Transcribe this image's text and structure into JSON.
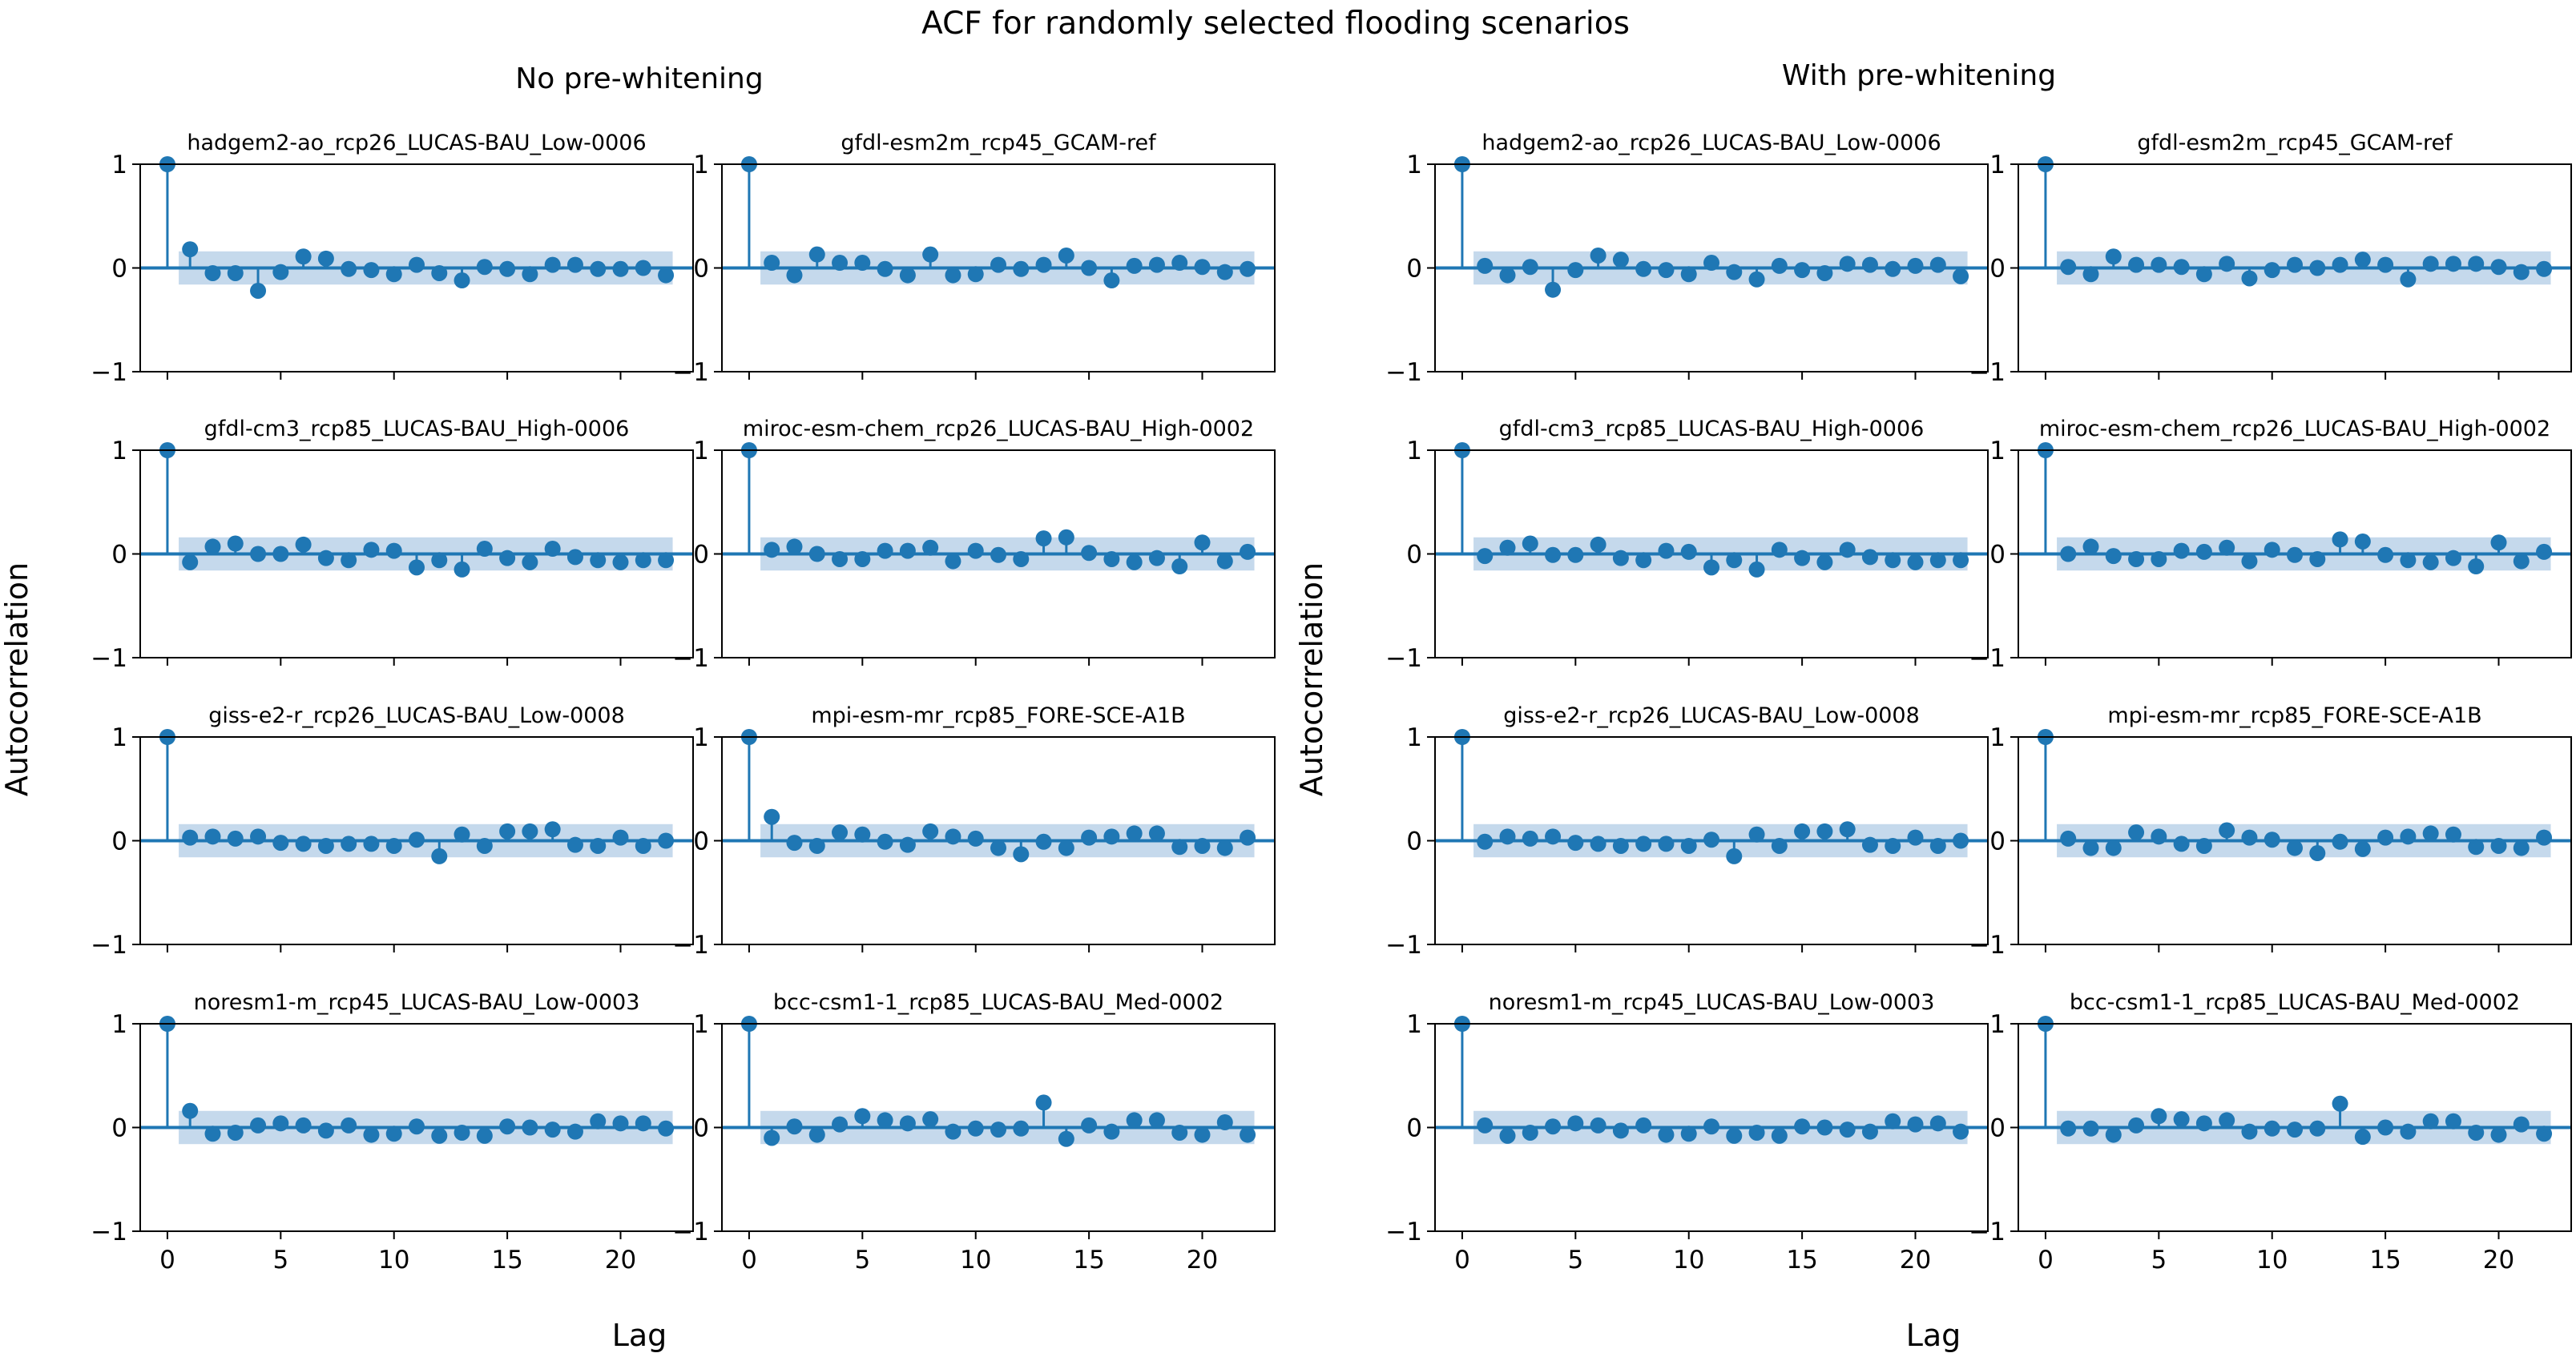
{
  "figure": {
    "title": "ACF for randomly selected flooding scenarios",
    "xlabel": "Lag",
    "ylabel": "Autocorrelation"
  },
  "groups": [
    {
      "title": "No pre-whitening"
    },
    {
      "title": "With pre-whitening"
    }
  ],
  "colors": {
    "stem": "#1f77b4",
    "confidence_band": "#c5d9ec",
    "axes": "#000000"
  },
  "chart_data": [
    {
      "type": "stem",
      "group": "No pre-whitening",
      "title": "hadgem2-ao_rcp26_LUCAS-BAU_Low-0006",
      "x": [
        0,
        1,
        2,
        3,
        4,
        5,
        6,
        7,
        8,
        9,
        10,
        11,
        12,
        13,
        14,
        15,
        16,
        17,
        18,
        19,
        20,
        21,
        22
      ],
      "values": [
        1.0,
        0.18,
        -0.05,
        -0.05,
        -0.22,
        -0.04,
        0.11,
        0.09,
        -0.01,
        -0.02,
        -0.06,
        0.03,
        -0.05,
        -0.12,
        0.01,
        -0.01,
        -0.06,
        0.03,
        0.03,
        -0.01,
        -0.01,
        0.0,
        -0.07
      ],
      "confidence": 0.16,
      "xticks": [
        0,
        5,
        10,
        15,
        20
      ],
      "yticks": [
        -1,
        0,
        1
      ],
      "xlim": [
        -1.2,
        23.2
      ],
      "ylim": [
        -1,
        1
      ]
    },
    {
      "type": "stem",
      "group": "No pre-whitening",
      "title": "gfdl-esm2m_rcp45_GCAM-ref",
      "x": [
        0,
        1,
        2,
        3,
        4,
        5,
        6,
        7,
        8,
        9,
        10,
        11,
        12,
        13,
        14,
        15,
        16,
        17,
        18,
        19,
        20,
        21,
        22
      ],
      "values": [
        1.0,
        0.05,
        -0.07,
        0.13,
        0.05,
        0.05,
        -0.01,
        -0.07,
        0.13,
        -0.07,
        -0.06,
        0.03,
        -0.01,
        0.03,
        0.12,
        0.0,
        -0.12,
        0.02,
        0.03,
        0.05,
        0.01,
        -0.04,
        -0.01
      ],
      "confidence": 0.16,
      "xticks": [
        0,
        5,
        10,
        15,
        20
      ],
      "yticks": [
        -1,
        0,
        1
      ],
      "xlim": [
        -1.2,
        23.2
      ],
      "ylim": [
        -1,
        1
      ]
    },
    {
      "type": "stem",
      "group": "No pre-whitening",
      "title": "gfdl-cm3_rcp85_LUCAS-BAU_High-0006",
      "x": [
        0,
        1,
        2,
        3,
        4,
        5,
        6,
        7,
        8,
        9,
        10,
        11,
        12,
        13,
        14,
        15,
        16,
        17,
        18,
        19,
        20,
        21,
        22
      ],
      "values": [
        1.0,
        -0.08,
        0.07,
        0.1,
        0.0,
        0.0,
        0.09,
        -0.04,
        -0.06,
        0.04,
        0.03,
        -0.13,
        -0.06,
        -0.15,
        0.05,
        -0.04,
        -0.08,
        0.05,
        -0.03,
        -0.06,
        -0.08,
        -0.06,
        -0.06
      ],
      "confidence": 0.16,
      "xticks": [
        0,
        5,
        10,
        15,
        20
      ],
      "yticks": [
        -1,
        0,
        1
      ],
      "xlim": [
        -1.2,
        23.2
      ],
      "ylim": [
        -1,
        1
      ]
    },
    {
      "type": "stem",
      "group": "No pre-whitening",
      "title": "miroc-esm-chem_rcp26_LUCAS-BAU_High-0002",
      "x": [
        0,
        1,
        2,
        3,
        4,
        5,
        6,
        7,
        8,
        9,
        10,
        11,
        12,
        13,
        14,
        15,
        16,
        17,
        18,
        19,
        20,
        21,
        22
      ],
      "values": [
        1.0,
        0.04,
        0.07,
        0.0,
        -0.05,
        -0.05,
        0.03,
        0.03,
        0.06,
        -0.07,
        0.03,
        -0.01,
        -0.05,
        0.15,
        0.16,
        0.01,
        -0.05,
        -0.08,
        -0.04,
        -0.12,
        0.11,
        -0.07,
        0.02
      ],
      "confidence": 0.16,
      "xticks": [
        0,
        5,
        10,
        15,
        20
      ],
      "yticks": [
        -1,
        0,
        1
      ],
      "xlim": [
        -1.2,
        23.2
      ],
      "ylim": [
        -1,
        1
      ]
    },
    {
      "type": "stem",
      "group": "No pre-whitening",
      "title": "giss-e2-r_rcp26_LUCAS-BAU_Low-0008",
      "x": [
        0,
        1,
        2,
        3,
        4,
        5,
        6,
        7,
        8,
        9,
        10,
        11,
        12,
        13,
        14,
        15,
        16,
        17,
        18,
        19,
        20,
        21,
        22
      ],
      "values": [
        1.0,
        0.03,
        0.04,
        0.02,
        0.04,
        -0.02,
        -0.03,
        -0.05,
        -0.03,
        -0.03,
        -0.05,
        0.01,
        -0.15,
        0.06,
        -0.05,
        0.09,
        0.09,
        0.11,
        -0.04,
        -0.05,
        0.03,
        -0.05,
        0.0
      ],
      "confidence": 0.16,
      "xticks": [
        0,
        5,
        10,
        15,
        20
      ],
      "yticks": [
        -1,
        0,
        1
      ],
      "xlim": [
        -1.2,
        23.2
      ],
      "ylim": [
        -1,
        1
      ]
    },
    {
      "type": "stem",
      "group": "No pre-whitening",
      "title": "mpi-esm-mr_rcp85_FORE-SCE-A1B",
      "x": [
        0,
        1,
        2,
        3,
        4,
        5,
        6,
        7,
        8,
        9,
        10,
        11,
        12,
        13,
        14,
        15,
        16,
        17,
        18,
        19,
        20,
        21,
        22
      ],
      "values": [
        1.0,
        0.23,
        -0.02,
        -0.05,
        0.08,
        0.06,
        -0.01,
        -0.04,
        0.09,
        0.04,
        0.02,
        -0.07,
        -0.13,
        -0.01,
        -0.07,
        0.03,
        0.04,
        0.07,
        0.07,
        -0.06,
        -0.05,
        -0.07,
        0.03
      ],
      "confidence": 0.16,
      "xticks": [
        0,
        5,
        10,
        15,
        20
      ],
      "yticks": [
        -1,
        0,
        1
      ],
      "xlim": [
        -1.2,
        23.2
      ],
      "ylim": [
        -1,
        1
      ]
    },
    {
      "type": "stem",
      "group": "No pre-whitening",
      "title": "noresm1-m_rcp45_LUCAS-BAU_Low-0003",
      "x": [
        0,
        1,
        2,
        3,
        4,
        5,
        6,
        7,
        8,
        9,
        10,
        11,
        12,
        13,
        14,
        15,
        16,
        17,
        18,
        19,
        20,
        21,
        22
      ],
      "values": [
        1.0,
        0.16,
        -0.06,
        -0.05,
        0.02,
        0.04,
        0.02,
        -0.03,
        0.02,
        -0.07,
        -0.06,
        0.01,
        -0.08,
        -0.05,
        -0.08,
        0.01,
        0.0,
        -0.02,
        -0.04,
        0.06,
        0.04,
        0.04,
        -0.01
      ],
      "confidence": 0.16,
      "xticks": [
        0,
        5,
        10,
        15,
        20
      ],
      "yticks": [
        -1,
        0,
        1
      ],
      "xlim": [
        -1.2,
        23.2
      ],
      "ylim": [
        -1,
        1
      ]
    },
    {
      "type": "stem",
      "group": "No pre-whitening",
      "title": "bcc-csm1-1_rcp85_LUCAS-BAU_Med-0002",
      "x": [
        0,
        1,
        2,
        3,
        4,
        5,
        6,
        7,
        8,
        9,
        10,
        11,
        12,
        13,
        14,
        15,
        16,
        17,
        18,
        19,
        20,
        21,
        22
      ],
      "values": [
        1.0,
        -0.1,
        0.01,
        -0.07,
        0.03,
        0.11,
        0.07,
        0.04,
        0.08,
        -0.04,
        -0.01,
        -0.02,
        -0.01,
        0.24,
        -0.11,
        0.02,
        -0.04,
        0.07,
        0.07,
        -0.05,
        -0.07,
        0.05,
        -0.07
      ],
      "confidence": 0.16,
      "xticks": [
        0,
        5,
        10,
        15,
        20
      ],
      "yticks": [
        -1,
        0,
        1
      ],
      "xlim": [
        -1.2,
        23.2
      ],
      "ylim": [
        -1,
        1
      ]
    },
    {
      "type": "stem",
      "group": "With pre-whitening",
      "title": "hadgem2-ao_rcp26_LUCAS-BAU_Low-0006",
      "x": [
        0,
        1,
        2,
        3,
        4,
        5,
        6,
        7,
        8,
        9,
        10,
        11,
        12,
        13,
        14,
        15,
        16,
        17,
        18,
        19,
        20,
        21,
        22
      ],
      "values": [
        1.0,
        0.02,
        -0.07,
        0.01,
        -0.21,
        -0.02,
        0.12,
        0.08,
        -0.01,
        -0.02,
        -0.06,
        0.05,
        -0.04,
        -0.11,
        0.02,
        -0.02,
        -0.05,
        0.04,
        0.03,
        -0.01,
        0.02,
        0.03,
        -0.08
      ],
      "confidence": 0.16,
      "xticks": [
        0,
        5,
        10,
        15,
        20
      ],
      "yticks": [
        -1,
        0,
        1
      ],
      "xlim": [
        -1.2,
        23.2
      ],
      "ylim": [
        -1,
        1
      ]
    },
    {
      "type": "stem",
      "group": "With pre-whitening",
      "title": "gfdl-esm2m_rcp45_GCAM-ref",
      "x": [
        0,
        1,
        2,
        3,
        4,
        5,
        6,
        7,
        8,
        9,
        10,
        11,
        12,
        13,
        14,
        15,
        16,
        17,
        18,
        19,
        20,
        21,
        22
      ],
      "values": [
        1.0,
        0.01,
        -0.06,
        0.11,
        0.03,
        0.03,
        0.01,
        -0.06,
        0.04,
        -0.1,
        -0.02,
        0.03,
        0.0,
        0.03,
        0.08,
        0.03,
        -0.11,
        0.04,
        0.04,
        0.04,
        0.01,
        -0.04,
        -0.01
      ],
      "confidence": 0.16,
      "xticks": [
        0,
        5,
        10,
        15,
        20
      ],
      "yticks": [
        -1,
        0,
        1
      ],
      "xlim": [
        -1.2,
        23.2
      ],
      "ylim": [
        -1,
        1
      ]
    },
    {
      "type": "stem",
      "group": "With pre-whitening",
      "title": "gfdl-cm3_rcp85_LUCAS-BAU_High-0006",
      "x": [
        0,
        1,
        2,
        3,
        4,
        5,
        6,
        7,
        8,
        9,
        10,
        11,
        12,
        13,
        14,
        15,
        16,
        17,
        18,
        19,
        20,
        21,
        22
      ],
      "values": [
        1.0,
        -0.02,
        0.06,
        0.1,
        -0.01,
        -0.01,
        0.09,
        -0.04,
        -0.06,
        0.03,
        0.02,
        -0.13,
        -0.06,
        -0.15,
        0.04,
        -0.04,
        -0.08,
        0.04,
        -0.03,
        -0.06,
        -0.08,
        -0.06,
        -0.06
      ],
      "confidence": 0.16,
      "xticks": [
        0,
        5,
        10,
        15,
        20
      ],
      "yticks": [
        -1,
        0,
        1
      ],
      "xlim": [
        -1.2,
        23.2
      ],
      "ylim": [
        -1,
        1
      ]
    },
    {
      "type": "stem",
      "group": "With pre-whitening",
      "title": "miroc-esm-chem_rcp26_LUCAS-BAU_High-0002",
      "x": [
        0,
        1,
        2,
        3,
        4,
        5,
        6,
        7,
        8,
        9,
        10,
        11,
        12,
        13,
        14,
        15,
        16,
        17,
        18,
        19,
        20,
        21,
        22
      ],
      "values": [
        1.0,
        0.0,
        0.07,
        -0.02,
        -0.05,
        -0.05,
        0.03,
        0.02,
        0.06,
        -0.07,
        0.04,
        -0.01,
        -0.05,
        0.14,
        0.12,
        -0.01,
        -0.06,
        -0.08,
        -0.04,
        -0.12,
        0.11,
        -0.07,
        0.02
      ],
      "confidence": 0.16,
      "xticks": [
        0,
        5,
        10,
        15,
        20
      ],
      "yticks": [
        -1,
        0,
        1
      ],
      "xlim": [
        -1.2,
        23.2
      ],
      "ylim": [
        -1,
        1
      ]
    },
    {
      "type": "stem",
      "group": "With pre-whitening",
      "title": "giss-e2-r_rcp26_LUCAS-BAU_Low-0008",
      "x": [
        0,
        1,
        2,
        3,
        4,
        5,
        6,
        7,
        8,
        9,
        10,
        11,
        12,
        13,
        14,
        15,
        16,
        17,
        18,
        19,
        20,
        21,
        22
      ],
      "values": [
        1.0,
        -0.01,
        0.04,
        0.02,
        0.04,
        -0.02,
        -0.03,
        -0.05,
        -0.03,
        -0.03,
        -0.05,
        0.01,
        -0.15,
        0.06,
        -0.05,
        0.09,
        0.09,
        0.11,
        -0.04,
        -0.05,
        0.03,
        -0.05,
        0.0
      ],
      "confidence": 0.16,
      "xticks": [
        0,
        5,
        10,
        15,
        20
      ],
      "yticks": [
        -1,
        0,
        1
      ],
      "xlim": [
        -1.2,
        23.2
      ],
      "ylim": [
        -1,
        1
      ]
    },
    {
      "type": "stem",
      "group": "With pre-whitening",
      "title": "mpi-esm-mr_rcp85_FORE-SCE-A1B",
      "x": [
        0,
        1,
        2,
        3,
        4,
        5,
        6,
        7,
        8,
        9,
        10,
        11,
        12,
        13,
        14,
        15,
        16,
        17,
        18,
        19,
        20,
        21,
        22
      ],
      "values": [
        1.0,
        0.02,
        -0.07,
        -0.07,
        0.08,
        0.04,
        -0.03,
        -0.05,
        0.1,
        0.03,
        0.01,
        -0.07,
        -0.12,
        -0.01,
        -0.08,
        0.03,
        0.04,
        0.07,
        0.06,
        -0.06,
        -0.05,
        -0.07,
        0.03
      ],
      "confidence": 0.16,
      "xticks": [
        0,
        5,
        10,
        15,
        20
      ],
      "yticks": [
        -1,
        0,
        1
      ],
      "xlim": [
        -1.2,
        23.2
      ],
      "ylim": [
        -1,
        1
      ]
    },
    {
      "type": "stem",
      "group": "With pre-whitening",
      "title": "noresm1-m_rcp45_LUCAS-BAU_Low-0003",
      "x": [
        0,
        1,
        2,
        3,
        4,
        5,
        6,
        7,
        8,
        9,
        10,
        11,
        12,
        13,
        14,
        15,
        16,
        17,
        18,
        19,
        20,
        21,
        22
      ],
      "values": [
        1.0,
        0.02,
        -0.08,
        -0.05,
        0.01,
        0.04,
        0.02,
        -0.03,
        0.02,
        -0.07,
        -0.06,
        0.01,
        -0.08,
        -0.05,
        -0.08,
        0.01,
        0.0,
        -0.02,
        -0.04,
        0.06,
        0.03,
        0.04,
        -0.04
      ],
      "confidence": 0.16,
      "xticks": [
        0,
        5,
        10,
        15,
        20
      ],
      "yticks": [
        -1,
        0,
        1
      ],
      "xlim": [
        -1.2,
        23.2
      ],
      "ylim": [
        -1,
        1
      ]
    },
    {
      "type": "stem",
      "group": "With pre-whitening",
      "title": "bcc-csm1-1_rcp85_LUCAS-BAU_Med-0002",
      "x": [
        0,
        1,
        2,
        3,
        4,
        5,
        6,
        7,
        8,
        9,
        10,
        11,
        12,
        13,
        14,
        15,
        16,
        17,
        18,
        19,
        20,
        21,
        22
      ],
      "values": [
        1.0,
        -0.01,
        -0.01,
        -0.07,
        0.02,
        0.11,
        0.08,
        0.04,
        0.07,
        -0.04,
        -0.01,
        -0.02,
        -0.01,
        0.23,
        -0.09,
        0.0,
        -0.04,
        0.06,
        0.06,
        -0.05,
        -0.07,
        0.03,
        -0.06
      ],
      "confidence": 0.16,
      "xticks": [
        0,
        5,
        10,
        15,
        20
      ],
      "yticks": [
        -1,
        0,
        1
      ],
      "xlim": [
        -1.2,
        23.2
      ],
      "ylim": [
        -1,
        1
      ]
    }
  ]
}
